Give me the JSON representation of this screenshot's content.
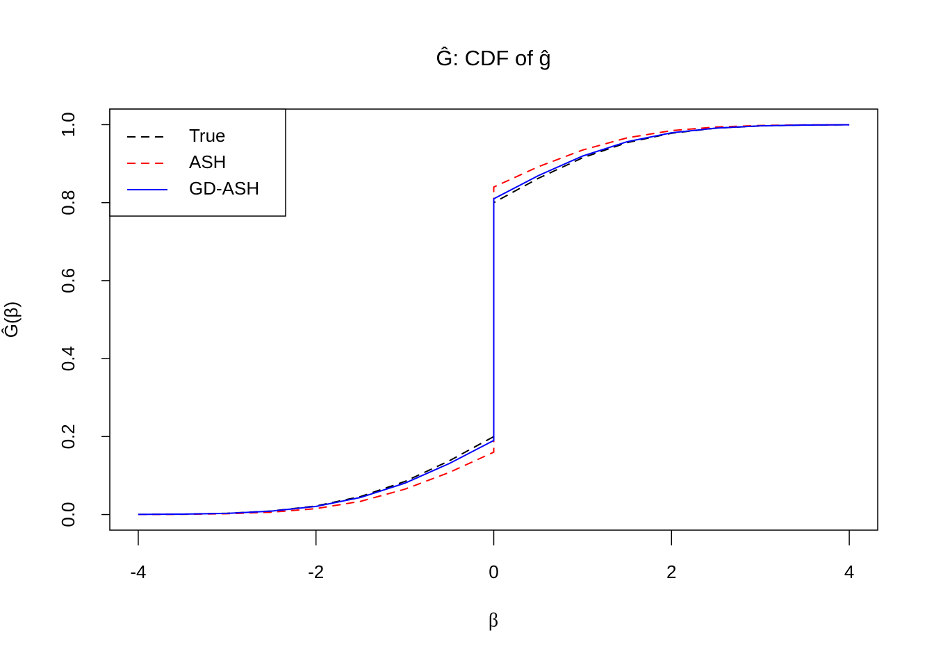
{
  "chart_data": {
    "type": "line",
    "title": "Ĝ: CDF of ĝ",
    "xlabel": "β",
    "ylabel": "Ĝ(β)",
    "x": [
      -4,
      -3.5,
      -3,
      -2.5,
      -2,
      -1.5,
      -1,
      -0.5,
      0,
      0,
      0.5,
      1,
      1.5,
      2,
      2.5,
      3,
      3.5,
      4
    ],
    "series": [
      {
        "name": "True",
        "color": "#000000",
        "linestyle": "dashed",
        "values": [
          0.0003,
          0.001,
          0.0033,
          0.0091,
          0.0219,
          0.046,
          0.0848,
          0.1378,
          0.2,
          0.8,
          0.8622,
          0.9152,
          0.954,
          0.9781,
          0.9909,
          0.9967,
          0.999,
          0.9997
        ]
      },
      {
        "name": "ASH",
        "color": "#ff0000",
        "linestyle": "dashed",
        "values": [
          0.0001,
          0.0006,
          0.002,
          0.006,
          0.0152,
          0.0338,
          0.065,
          0.108,
          0.16,
          0.84,
          0.892,
          0.935,
          0.9662,
          0.9848,
          0.994,
          0.998,
          0.9994,
          0.9999
        ]
      },
      {
        "name": "GD-ASH",
        "color": "#0000ff",
        "linestyle": "solid",
        "values": [
          0.0003,
          0.001,
          0.0031,
          0.0087,
          0.0208,
          0.0437,
          0.0805,
          0.1309,
          0.19,
          0.81,
          0.8691,
          0.9195,
          0.9563,
          0.9792,
          0.9913,
          0.9969,
          0.999,
          0.9997
        ]
      }
    ],
    "xlim": [
      -4.32,
      4.32
    ],
    "ylim": [
      -0.04,
      1.04
    ],
    "xticks": [
      -4,
      -2,
      0,
      2,
      4
    ],
    "yticks": [
      {
        "value": 0,
        "label": "0.0"
      },
      0.2,
      0.4,
      0.6,
      0.8,
      {
        "value": 1,
        "label": "1.0"
      }
    ],
    "grid": false,
    "legend": "top-left"
  }
}
